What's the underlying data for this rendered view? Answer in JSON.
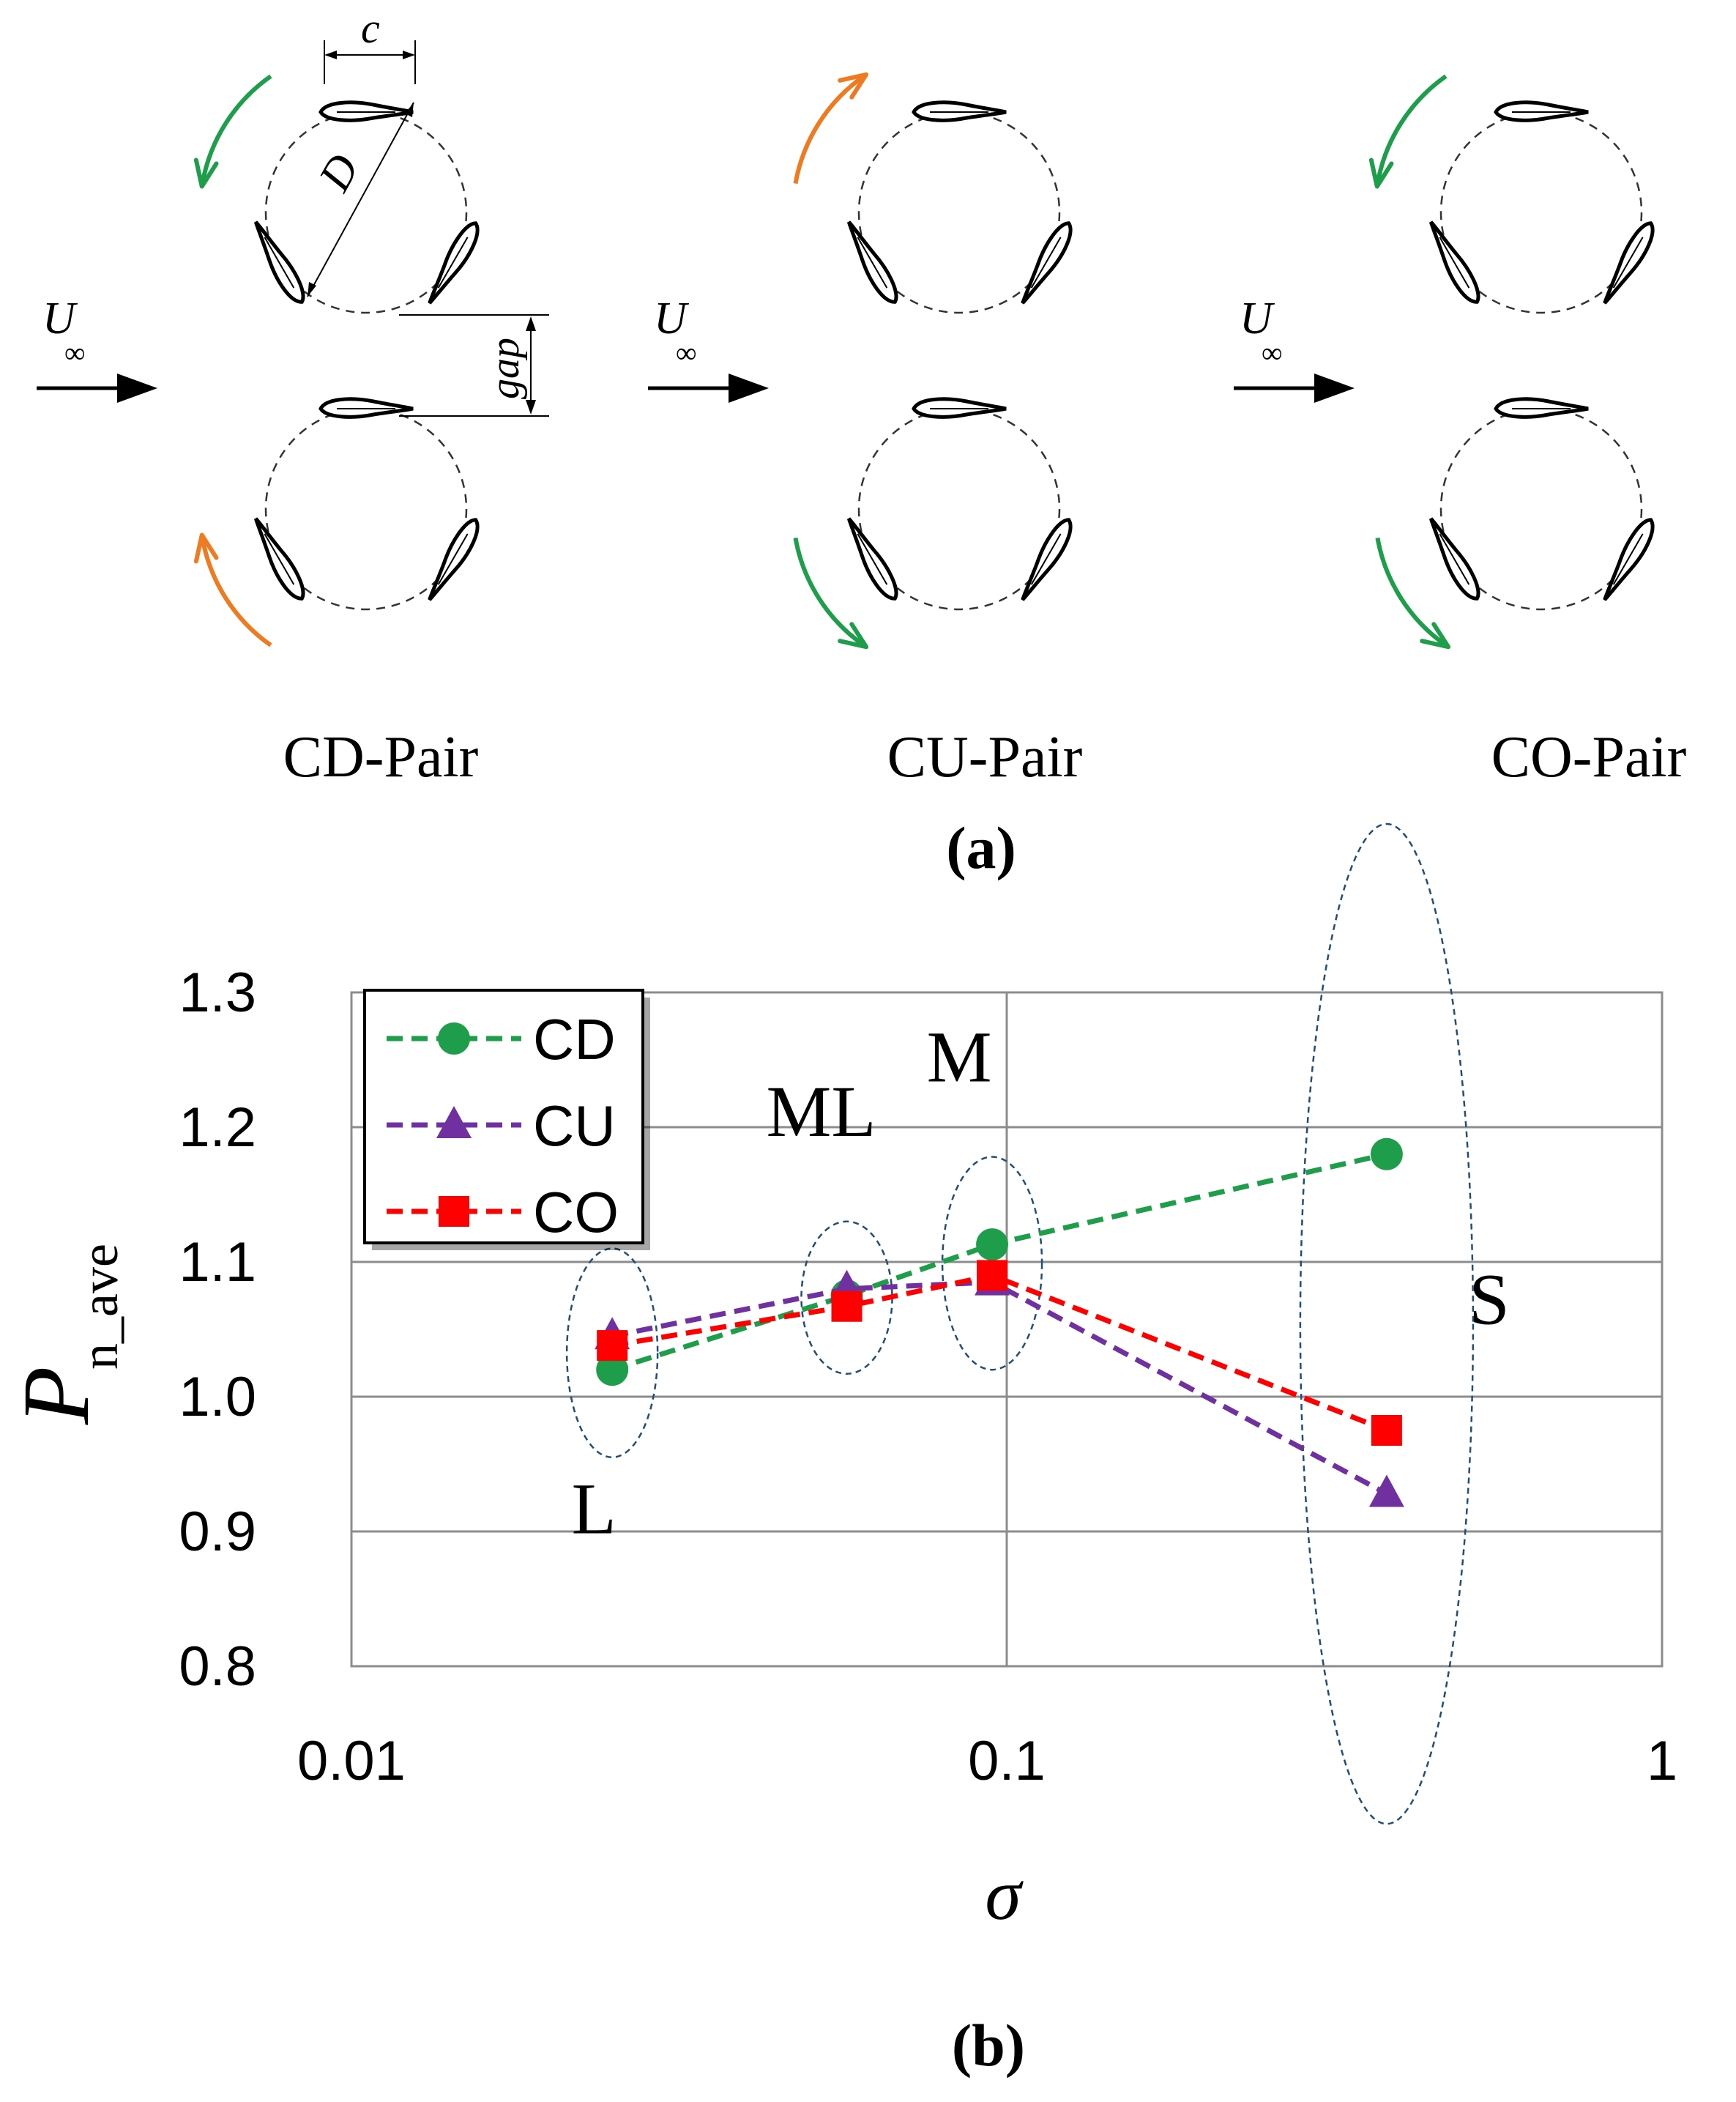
{
  "panel_a": {
    "caption": "(a)",
    "freestream_label": "U",
    "freestream_sub": "∞",
    "dim_chord": "c",
    "dim_diameter": "D",
    "dim_gap": "gap",
    "pairs": [
      {
        "name": "CD-Pair",
        "top_rotation": "counter-clockwise",
        "top_color": "#1e9e4a",
        "bottom_rotation": "clockwise",
        "bottom_color": "#ee7a22"
      },
      {
        "name": "CU-Pair",
        "top_rotation": "clockwise",
        "top_color": "#ee7a22",
        "bottom_rotation": "counter-clockwise",
        "bottom_color": "#1e9e4a"
      },
      {
        "name": "CO-Pair",
        "top_rotation": "counter-clockwise",
        "top_color": "#1e9e4a",
        "bottom_rotation": "counter-clockwise",
        "bottom_color": "#1e9e4a"
      }
    ]
  },
  "panel_b": {
    "caption": "(b)",
    "ylabel_main": "P",
    "ylabel_sub": "n_ave",
    "xlabel": "σ",
    "cluster_labels": [
      "L",
      "ML",
      "M",
      "S"
    ]
  },
  "chart_data": {
    "type": "line",
    "xscale": "log",
    "xlim": [
      0.01,
      1
    ],
    "ylim": [
      0.8,
      1.3
    ],
    "xticks": [
      "0.01",
      "0.1",
      "1"
    ],
    "yticks": [
      "0.8",
      "0.9",
      "1.0",
      "1.1",
      "1.2",
      "1.3"
    ],
    "grid": true,
    "legend_position": "top-left",
    "x": [
      0.025,
      0.057,
      0.095,
      0.38
    ],
    "series": [
      {
        "name": "CD",
        "values": [
          1.02,
          1.075,
          1.113,
          1.18
        ],
        "color": "#1e9e4a",
        "marker": "circle"
      },
      {
        "name": "CU",
        "values": [
          1.045,
          1.08,
          1.085,
          0.928
        ],
        "color": "#7030a0",
        "marker": "triangle"
      },
      {
        "name": "CO",
        "values": [
          1.038,
          1.067,
          1.09,
          0.975
        ],
        "color": "#ff0000",
        "marker": "square"
      }
    ]
  }
}
